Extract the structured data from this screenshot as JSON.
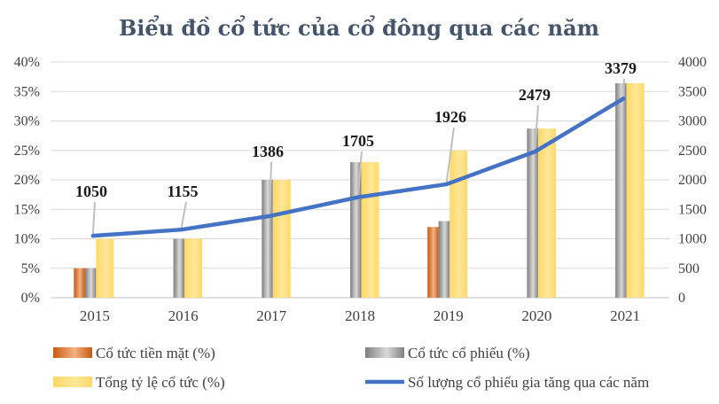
{
  "chart_data": {
    "type": "bar",
    "title": "Biểu đồ cổ tức của cổ đông qua các năm",
    "categories": [
      "2015",
      "2016",
      "2017",
      "2018",
      "2019",
      "2020",
      "2021"
    ],
    "y_left": {
      "min": 0,
      "max": 40,
      "step": 5,
      "unit": "%",
      "ticks": [
        "0%",
        "5%",
        "10%",
        "15%",
        "20%",
        "25%",
        "30%",
        "35%",
        "40%"
      ]
    },
    "y_right": {
      "min": 0,
      "max": 4000,
      "step": 500,
      "ticks": [
        "0",
        "500",
        "1000",
        "1500",
        "2000",
        "2500",
        "3000",
        "3500",
        "4000"
      ]
    },
    "series": [
      {
        "name": "Cổ tức tiền mặt (%)",
        "type": "bar",
        "axis": "left",
        "color": "#ed7d31",
        "values": [
          5,
          0,
          0,
          0,
          12,
          0,
          0
        ]
      },
      {
        "name": "Cổ tức cổ phiếu (%)",
        "type": "bar",
        "axis": "left",
        "color": "#a5a5a5",
        "values": [
          5,
          10,
          20,
          23,
          13,
          28.7,
          36.4
        ]
      },
      {
        "name": "Tổng tỷ lệ cổ tức (%)",
        "type": "bar",
        "axis": "left",
        "color": "#ffd966",
        "values": [
          10,
          10,
          20,
          23,
          25,
          28.7,
          36.4
        ]
      },
      {
        "name": "Số lượng cổ phiếu gia tăng qua các năm",
        "type": "line",
        "axis": "right",
        "color": "#4472c4",
        "values": [
          1050,
          1155,
          1386,
          1705,
          1926,
          2479,
          3379
        ]
      }
    ],
    "data_labels": [
      "1050",
      "1155",
      "1386",
      "1705",
      "1926",
      "2479",
      "3379"
    ],
    "legend_position": "bottom",
    "grid": true
  }
}
